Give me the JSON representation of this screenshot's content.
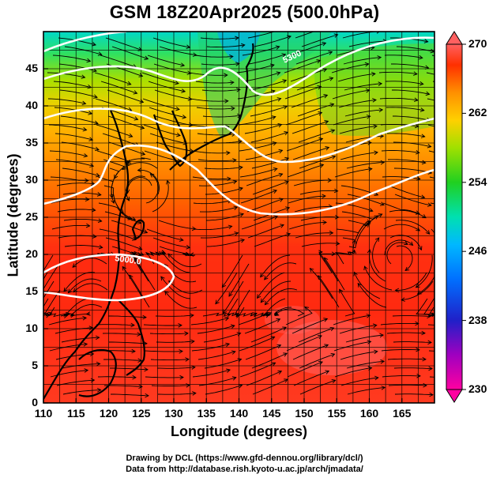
{
  "title": "GSM 18Z20Apr2025 (500.0hPa)",
  "xaxis": {
    "label": "Longitude (degrees)",
    "range": [
      110,
      170
    ],
    "ticks": [
      "110",
      "115",
      "120",
      "125",
      "130",
      "135",
      "140",
      "145",
      "150",
      "155",
      "160",
      "165"
    ]
  },
  "yaxis": {
    "label": "Latitude  (degrees)",
    "range": [
      0,
      50
    ],
    "ticks": [
      "0",
      "5",
      "10",
      "15",
      "20",
      "25",
      "30",
      "35",
      "40",
      "45"
    ]
  },
  "colorbar": {
    "min": 230,
    "max": 270,
    "ticks": [
      "270",
      "262",
      "254",
      "246",
      "238",
      "230"
    ],
    "colors": [
      "#ff0080",
      "#a000c0",
      "#2020d0",
      "#0070ff",
      "#00b0ff",
      "#00e0c0",
      "#20d020",
      "#a0e000",
      "#ffd000",
      "#ff8000",
      "#ff2000",
      "#ff5050"
    ]
  },
  "contour_labels": [
    {
      "text": "5000.0"
    },
    {
      "text": "5300"
    }
  ],
  "credits": {
    "line1": "Drawing by DCL (https://www.gfd-dennou.org/library/dcl/)",
    "line2": "Data from http://database.rish.kyoto-u.ac.jp/arch/jmadata/"
  },
  "map": {
    "region": "Western North Pacific / East Asia",
    "field": "500hPa temperature with streamlines and geopotential height contours"
  }
}
